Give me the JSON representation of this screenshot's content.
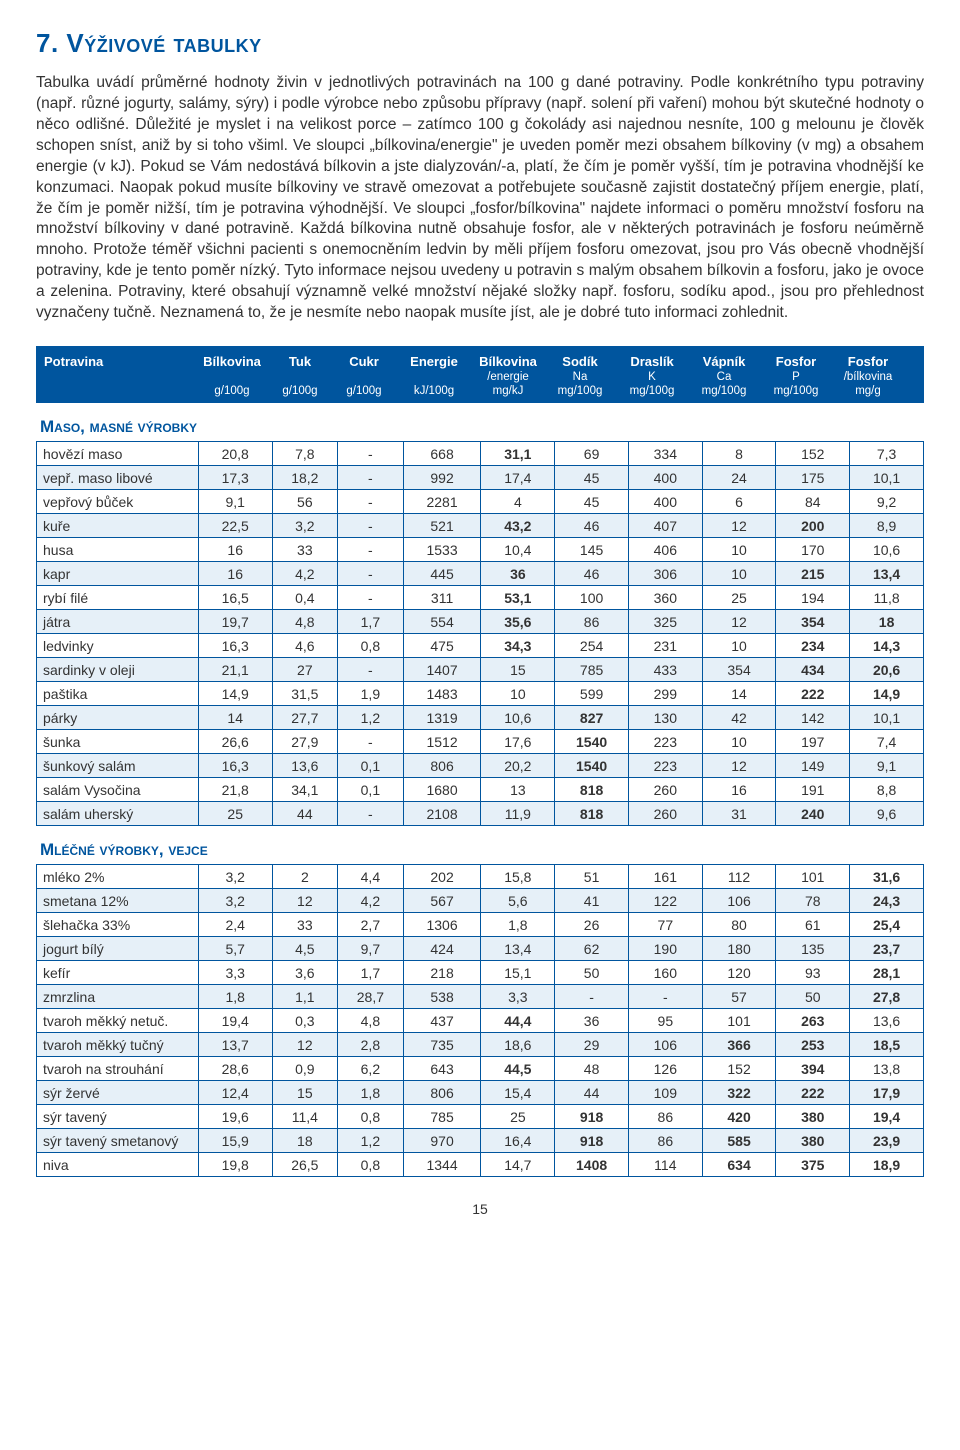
{
  "heading": "7. Výživové tabulky",
  "intro": "Tabulka uvádí průměrné hodnoty živin v jednotlivých potravinách na 100 g dané potraviny. Podle konkrétního typu potraviny (např. různé jogurty, salámy, sýry) i podle výrobce nebo způsobu přípravy (např. solení při vaření) mohou být skutečné hodnoty o něco odlišné. Důležité je myslet i na velikost porce – zatímco 100 g čokolády asi najednou nesníte, 100 g melounu je člověk schopen sníst, aniž by si toho všiml. Ve sloupci „bílkovina/energie\" je uveden poměr mezi obsahem bílkoviny (v mg) a obsahem energie (v kJ). Pokud se Vám nedostává bílkovin a jste dialyzován/-a, platí, že čím je poměr vyšší, tím je potravina vhodnější ke konzumaci. Naopak pokud musíte bílkoviny ve stravě omezovat a potřebujete současně zajistit dostatečný příjem energie, platí, že čím je poměr nižší, tím je potravina výhodnější. Ve sloupci „fosfor/bílkovina\" najdete informaci o poměru množství fosforu na množství bílkoviny v dané potravině. Každá bílkovina nutně obsahuje fosfor, ale v některých potravinách je fosforu neúměrně mnoho. Protože téměř všichni pacienti s onemocněním ledvin by měli příjem fosforu omezovat, jsou pro Vás obecně vhodnější potraviny, kde je tento poměr nízký. Tyto informace nejsou uvedeny u potravin s malým obsahem bílkovin a fosforu, jako je ovoce a zelenina. Potraviny, které obsahují významně velké množství nějaké složky např. fosforu, sodíku apod., jsou pro přehlednost vyznačeny tučně. Neznamená to, že je nesmíte nebo naopak musíte jíst, ale je dobré tuto informaci zohlednit.",
  "columns": [
    {
      "top": "Potravina",
      "sub": "",
      "unit": ""
    },
    {
      "top": "Bílkovina",
      "sub": "",
      "unit": "g/100g"
    },
    {
      "top": "Tuk",
      "sub": "",
      "unit": "g/100g"
    },
    {
      "top": "Cukr",
      "sub": "",
      "unit": "g/100g"
    },
    {
      "top": "Energie",
      "sub": "",
      "unit": "kJ/100g"
    },
    {
      "top": "Bílkovina",
      "sub": "/energie",
      "unit": "mg/kJ"
    },
    {
      "top": "Sodík",
      "sub": "Na",
      "unit": "mg/100g"
    },
    {
      "top": "Draslík",
      "sub": "K",
      "unit": "mg/100g"
    },
    {
      "top": "Vápník",
      "sub": "Ca",
      "unit": "mg/100g"
    },
    {
      "top": "Fosfor",
      "sub": "P",
      "unit": "mg/100g"
    },
    {
      "top": "Fosfor",
      "sub": "/bílkovina",
      "unit": "mg/g"
    }
  ],
  "sections": [
    {
      "title": "Maso, masné výrobky",
      "rows": [
        [
          "hovězí maso",
          "20,8",
          "7,8",
          "-",
          "668",
          {
            "v": "31,1",
            "b": 1
          },
          "69",
          "334",
          "8",
          "152",
          "7,3"
        ],
        [
          "vepř. maso libové",
          "17,3",
          "18,2",
          "-",
          "992",
          "17,4",
          "45",
          "400",
          "24",
          "175",
          "10,1"
        ],
        [
          "vepřový bůček",
          "9,1",
          "56",
          "-",
          "2281",
          "4",
          "45",
          "400",
          "6",
          "84",
          "9,2"
        ],
        [
          "kuře",
          "22,5",
          "3,2",
          "-",
          "521",
          {
            "v": "43,2",
            "b": 1
          },
          "46",
          "407",
          "12",
          {
            "v": "200",
            "b": 1
          },
          "8,9"
        ],
        [
          "husa",
          "16",
          "33",
          "-",
          "1533",
          "10,4",
          "145",
          "406",
          "10",
          "170",
          "10,6"
        ],
        [
          "kapr",
          "16",
          "4,2",
          "-",
          "445",
          {
            "v": "36",
            "b": 1
          },
          "46",
          "306",
          "10",
          {
            "v": "215",
            "b": 1
          },
          {
            "v": "13,4",
            "b": 1
          }
        ],
        [
          "rybí filé",
          "16,5",
          "0,4",
          "-",
          "311",
          {
            "v": "53,1",
            "b": 1
          },
          "100",
          "360",
          "25",
          "194",
          "11,8"
        ],
        [
          "játra",
          "19,7",
          "4,8",
          "1,7",
          "554",
          {
            "v": "35,6",
            "b": 1
          },
          "86",
          "325",
          "12",
          {
            "v": "354",
            "b": 1
          },
          {
            "v": "18",
            "b": 1
          }
        ],
        [
          "ledvinky",
          "16,3",
          "4,6",
          "0,8",
          "475",
          {
            "v": "34,3",
            "b": 1
          },
          "254",
          "231",
          "10",
          {
            "v": "234",
            "b": 1
          },
          {
            "v": "14,3",
            "b": 1
          }
        ],
        [
          "sardinky v oleji",
          "21,1",
          "27",
          "-",
          "1407",
          "15",
          "785",
          "433",
          "354",
          {
            "v": "434",
            "b": 1
          },
          {
            "v": "20,6",
            "b": 1
          }
        ],
        [
          "paštika",
          "14,9",
          "31,5",
          "1,9",
          "1483",
          "10",
          "599",
          "299",
          "14",
          {
            "v": "222",
            "b": 1
          },
          {
            "v": "14,9",
            "b": 1
          }
        ],
        [
          "párky",
          "14",
          "27,7",
          "1,2",
          "1319",
          "10,6",
          {
            "v": "827",
            "b": 1
          },
          "130",
          "42",
          "142",
          "10,1"
        ],
        [
          "šunka",
          "26,6",
          "27,9",
          "-",
          "1512",
          "17,6",
          {
            "v": "1540",
            "b": 1
          },
          "223",
          "10",
          "197",
          "7,4"
        ],
        [
          "šunkový salám",
          "16,3",
          "13,6",
          "0,1",
          "806",
          "20,2",
          {
            "v": "1540",
            "b": 1
          },
          "223",
          "12",
          "149",
          "9,1"
        ],
        [
          "salám Vysočina",
          "21,8",
          "34,1",
          "0,1",
          "1680",
          "13",
          {
            "v": "818",
            "b": 1
          },
          "260",
          "16",
          "191",
          "8,8"
        ],
        [
          "salám uherský",
          "25",
          "44",
          "-",
          "2108",
          "11,9",
          {
            "v": "818",
            "b": 1
          },
          "260",
          "31",
          {
            "v": "240",
            "b": 1
          },
          "9,6"
        ]
      ]
    },
    {
      "title": "Mléčné výrobky, vejce",
      "rows": [
        [
          "mléko 2%",
          "3,2",
          "2",
          "4,4",
          "202",
          "15,8",
          "51",
          "161",
          "112",
          "101",
          {
            "v": "31,6",
            "b": 1
          }
        ],
        [
          "smetana 12%",
          "3,2",
          "12",
          "4,2",
          "567",
          "5,6",
          "41",
          "122",
          "106",
          "78",
          {
            "v": "24,3",
            "b": 1
          }
        ],
        [
          "šlehačka 33%",
          "2,4",
          "33",
          "2,7",
          "1306",
          "1,8",
          "26",
          "77",
          "80",
          "61",
          {
            "v": "25,4",
            "b": 1
          }
        ],
        [
          "jogurt bílý",
          "5,7",
          "4,5",
          "9,7",
          "424",
          "13,4",
          "62",
          "190",
          "180",
          "135",
          {
            "v": "23,7",
            "b": 1
          }
        ],
        [
          "kefír",
          "3,3",
          "3,6",
          "1,7",
          "218",
          "15,1",
          "50",
          "160",
          "120",
          "93",
          {
            "v": "28,1",
            "b": 1
          }
        ],
        [
          "zmrzlina",
          "1,8",
          "1,1",
          "28,7",
          "538",
          "3,3",
          "-",
          "-",
          "57",
          "50",
          {
            "v": "27,8",
            "b": 1
          }
        ],
        [
          "tvaroh měkký netuč.",
          "19,4",
          "0,3",
          "4,8",
          "437",
          {
            "v": "44,4",
            "b": 1
          },
          "36",
          "95",
          "101",
          {
            "v": "263",
            "b": 1
          },
          "13,6"
        ],
        [
          "tvaroh měkký tučný",
          "13,7",
          "12",
          "2,8",
          "735",
          "18,6",
          "29",
          "106",
          {
            "v": "366",
            "b": 1
          },
          {
            "v": "253",
            "b": 1
          },
          {
            "v": "18,5",
            "b": 1
          }
        ],
        [
          "tvaroh na strouhání",
          "28,6",
          "0,9",
          "6,2",
          "643",
          {
            "v": "44,5",
            "b": 1
          },
          "48",
          "126",
          "152",
          {
            "v": "394",
            "b": 1
          },
          "13,8"
        ],
        [
          "sýr žervé",
          "12,4",
          "15",
          "1,8",
          "806",
          "15,4",
          "44",
          "109",
          {
            "v": "322",
            "b": 1
          },
          {
            "v": "222",
            "b": 1
          },
          {
            "v": "17,9",
            "b": 1
          }
        ],
        [
          "sýr tavený",
          "19,6",
          "11,4",
          "0,8",
          "785",
          "25",
          {
            "v": "918",
            "b": 1
          },
          "86",
          {
            "v": "420",
            "b": 1
          },
          {
            "v": "380",
            "b": 1
          },
          {
            "v": "19,4",
            "b": 1
          }
        ],
        [
          "sýr tavený smetanový",
          "15,9",
          "18",
          "1,2",
          "970",
          "16,4",
          {
            "v": "918",
            "b": 1
          },
          "86",
          {
            "v": "585",
            "b": 1
          },
          {
            "v": "380",
            "b": 1
          },
          {
            "v": "23,9",
            "b": 1
          }
        ],
        [
          "niva",
          "19,8",
          "26,5",
          "0,8",
          "1344",
          "14,7",
          {
            "v": "1408",
            "b": 1
          },
          "114",
          {
            "v": "634",
            "b": 1
          },
          {
            "v": "375",
            "b": 1
          },
          {
            "v": "18,9",
            "b": 1
          }
        ]
      ]
    }
  ],
  "pagenum": "15"
}
